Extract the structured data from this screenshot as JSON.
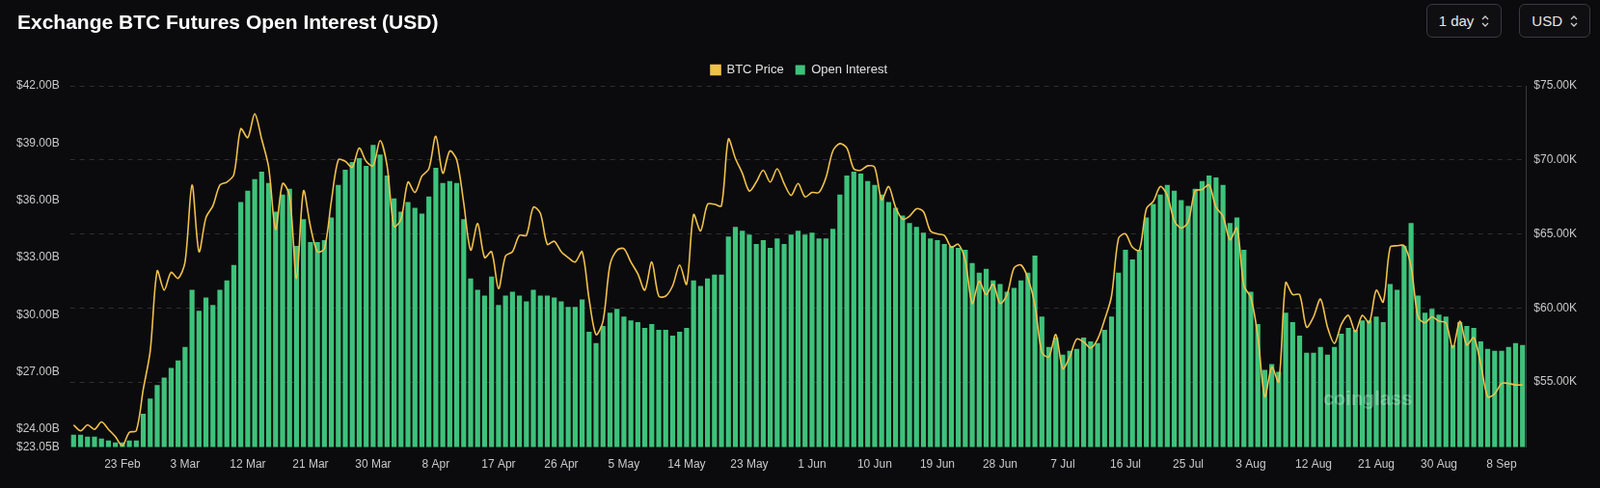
{
  "chart_data": {
    "type": "bar",
    "title": "Exchange BTC Futures Open Interest (USD)",
    "categories": [
      null,
      null,
      null,
      null,
      null,
      null,
      null,
      "23 Feb",
      null,
      null,
      null,
      null,
      null,
      null,
      null,
      null,
      "3 Mar",
      null,
      null,
      null,
      null,
      null,
      null,
      null,
      null,
      "12 Mar",
      null,
      null,
      null,
      null,
      null,
      null,
      null,
      null,
      "21 Mar",
      null,
      null,
      null,
      null,
      null,
      null,
      null,
      null,
      "30 Mar",
      null,
      null,
      null,
      null,
      null,
      null,
      null,
      null,
      "8 Apr",
      null,
      null,
      null,
      null,
      null,
      null,
      null,
      null,
      "17 Apr",
      null,
      null,
      null,
      null,
      null,
      null,
      null,
      null,
      "26 Apr",
      null,
      null,
      null,
      null,
      null,
      null,
      null,
      null,
      "5 May",
      null,
      null,
      null,
      null,
      null,
      null,
      null,
      null,
      "14 May",
      null,
      null,
      null,
      null,
      null,
      null,
      null,
      null,
      "23 May",
      null,
      null,
      null,
      null,
      null,
      null,
      null,
      null,
      "1 Jun",
      null,
      null,
      null,
      null,
      null,
      null,
      null,
      null,
      "10 Jun",
      null,
      null,
      null,
      null,
      null,
      null,
      null,
      null,
      "19 Jun",
      null,
      null,
      null,
      null,
      null,
      null,
      null,
      null,
      "28 Jun",
      null,
      null,
      null,
      null,
      null,
      null,
      null,
      null,
      "7 Jul",
      null,
      null,
      null,
      null,
      null,
      null,
      null,
      null,
      "16 Jul",
      null,
      null,
      null,
      null,
      null,
      null,
      null,
      null,
      "25 Jul",
      null,
      null,
      null,
      null,
      null,
      null,
      null,
      null,
      "3 Aug",
      null,
      null,
      null,
      null,
      null,
      null,
      null,
      null,
      "12 Aug",
      null,
      null,
      null,
      null,
      null,
      null,
      null,
      null,
      "21 Aug",
      null,
      null,
      null,
      null,
      null,
      null,
      null,
      null,
      "30 Aug",
      null,
      null,
      null,
      null,
      null,
      null,
      null,
      null,
      "8 Sep",
      null,
      null,
      null
    ],
    "series": [
      {
        "name": "BTC Price",
        "type": "line",
        "axis": "y2",
        "color": "#f0c14b",
        "marker": "none",
        "line_style": "solid",
        "values": [
          52.1,
          51.7,
          52.1,
          51.8,
          52.3,
          51.8,
          51.3,
          50.7,
          51.6,
          51.7,
          54.5,
          57.1,
          62.5,
          61.2,
          62.4,
          62.0,
          63.1,
          68.3,
          63.8,
          66.1,
          66.9,
          68.3,
          68.5,
          69.0,
          72.1,
          71.5,
          73.1,
          71.4,
          69.5,
          65.3,
          68.4,
          67.6,
          62.0,
          67.9,
          65.5,
          63.8,
          64.0,
          67.2,
          70.0,
          69.9,
          69.5,
          70.8,
          69.9,
          69.6,
          71.3,
          69.6,
          65.5,
          66.0,
          68.5,
          67.8,
          68.9,
          69.4,
          71.6,
          69.1,
          70.6,
          70.0,
          67.1,
          63.9,
          65.7,
          63.4,
          63.8,
          61.3,
          63.5,
          63.8,
          64.9,
          64.9,
          66.8,
          66.4,
          64.3,
          64.5,
          63.8,
          63.4,
          63.1,
          63.8,
          60.6,
          58.2,
          59.1,
          62.9,
          63.9,
          64.0,
          63.1,
          62.3,
          61.2,
          63.1,
          60.8,
          60.8,
          61.5,
          62.9,
          61.6,
          66.3,
          65.2,
          67.0,
          67.0,
          66.9,
          71.4,
          70.1,
          69.1,
          67.9,
          68.5,
          69.3,
          68.5,
          69.4,
          68.4,
          67.6,
          68.4,
          67.5,
          67.8,
          67.8,
          68.8,
          70.6,
          71.1,
          70.8,
          69.4,
          69.3,
          69.6,
          69.5,
          67.3,
          68.2,
          66.8,
          66.0,
          66.2,
          66.7,
          66.5,
          65.2,
          65.0,
          64.9,
          64.1,
          64.3,
          63.2,
          60.3,
          61.8,
          60.9,
          61.6,
          60.3,
          60.9,
          62.7,
          62.9,
          62.0,
          60.2,
          57.0,
          56.7,
          58.2,
          55.9,
          56.7,
          57.9,
          57.7,
          57.3,
          57.9,
          59.2,
          60.8,
          64.7,
          65.0,
          64.1,
          63.9,
          66.7,
          67.2,
          68.2,
          67.6,
          65.9,
          65.4,
          65.8,
          67.9,
          68.0,
          68.3,
          66.8,
          66.2,
          64.6,
          65.4,
          61.5,
          60.7,
          58.1,
          54.0,
          56.0,
          55.0,
          61.7,
          60.9,
          60.9,
          58.7,
          59.4,
          60.6,
          58.7,
          57.6,
          58.9,
          59.5,
          58.4,
          59.5,
          59.0,
          61.2,
          60.4,
          64.1,
          64.2,
          64.2,
          62.8,
          59.4,
          59.0,
          59.4,
          59.1,
          59.0,
          57.3,
          59.1,
          57.5,
          58.0,
          56.2,
          54.0,
          54.2,
          54.9,
          54.9,
          54.8,
          54.8
        ]
      },
      {
        "name": "Open Interest",
        "type": "bar",
        "color": "#3ec27b",
        "values": [
          23.7,
          23.7,
          23.6,
          23.6,
          23.5,
          23.4,
          23.3,
          23.3,
          23.4,
          23.4,
          24.8,
          25.6,
          26.3,
          26.7,
          27.2,
          27.6,
          28.3,
          31.3,
          30.2,
          30.9,
          30.5,
          31.3,
          31.8,
          32.6,
          35.9,
          36.5,
          37.1,
          37.5,
          36.9,
          35.4,
          36.3,
          36.6,
          33.6,
          35.0,
          33.8,
          33.8,
          33.9,
          35.1,
          36.8,
          37.6,
          38.0,
          38.2,
          37.8,
          38.9,
          38.4,
          37.3,
          36.1,
          35.4,
          35.9,
          35.6,
          35.3,
          36.2,
          37.7,
          36.9,
          37.0,
          36.9,
          35.0,
          31.9,
          31.3,
          31.0,
          32.0,
          30.5,
          31.0,
          31.2,
          31.0,
          30.7,
          31.3,
          31.0,
          31.0,
          30.9,
          30.7,
          30.4,
          30.4,
          30.8,
          29.1,
          28.5,
          29.4,
          30.1,
          30.3,
          29.9,
          29.7,
          29.6,
          29.3,
          29.5,
          29.2,
          29.2,
          28.9,
          29.1,
          29.3,
          31.8,
          31.5,
          31.9,
          32.1,
          32.1,
          34.1,
          34.6,
          34.4,
          34.2,
          33.7,
          33.9,
          33.5,
          34.0,
          33.7,
          34.2,
          34.4,
          34.2,
          34.3,
          34.0,
          34.0,
          34.5,
          36.3,
          37.3,
          37.5,
          37.4,
          37.0,
          36.8,
          36.3,
          35.9,
          35.6,
          35.2,
          34.8,
          34.6,
          34.3,
          34.0,
          33.9,
          33.7,
          33.6,
          33.5,
          33.4,
          32.7,
          32.2,
          32.4,
          31.8,
          31.6,
          31.2,
          31.4,
          31.8,
          32.2,
          33.1,
          29.9,
          28.3,
          28.8,
          27.9,
          28.1,
          28.2,
          28.8,
          28.6,
          28.5,
          29.2,
          29.9,
          32.2,
          33.4,
          32.9,
          33.4,
          35.1,
          35.8,
          36.3,
          36.8,
          36.5,
          36.0,
          35.7,
          36.6,
          37.0,
          37.3,
          37.2,
          36.8,
          34.8,
          35.1,
          33.4,
          31.2,
          29.5,
          27.1,
          27.4,
          27.0,
          30.1,
          29.6,
          28.9,
          28.0,
          28.0,
          28.3,
          27.9,
          28.3,
          29.0,
          29.3,
          29.2,
          29.7,
          29.7,
          29.9,
          29.6,
          31.6,
          31.3,
          33.6,
          34.8,
          31.0,
          30.1,
          30.3,
          30.0,
          29.9,
          28.4,
          29.6,
          29.4,
          29.3,
          28.6,
          28.2,
          28.1,
          28.1,
          28.3,
          28.5,
          28.4
        ]
      }
    ],
    "ylim": [
      23.05,
      42
    ],
    "yticks": [
      {
        "value": 23.05,
        "label": "$23.05B"
      },
      {
        "value": 24,
        "label": "$24.00B"
      },
      {
        "value": 27,
        "label": "$27.00B"
      },
      {
        "value": 30,
        "label": "$30.00B"
      },
      {
        "value": 33,
        "label": "$33.00B"
      },
      {
        "value": 36,
        "label": "$36.00B"
      },
      {
        "value": 39,
        "label": "$39.00B"
      },
      {
        "value": 42,
        "label": "$42.00B"
      }
    ],
    "y2lim": [
      50.6,
      75
    ],
    "y2ticks": [
      {
        "value": 55,
        "label": "$55.00K"
      },
      {
        "value": 60,
        "label": "$60.00K"
      },
      {
        "value": 65,
        "label": "$65.00K"
      },
      {
        "value": 70,
        "label": "$70.00K"
      },
      {
        "value": 75,
        "label": "$75.00K"
      }
    ],
    "grid": true,
    "legend": "top",
    "data_labels": false
  },
  "controls": [
    "1 day",
    "USD"
  ],
  "watermark": "coinglass"
}
